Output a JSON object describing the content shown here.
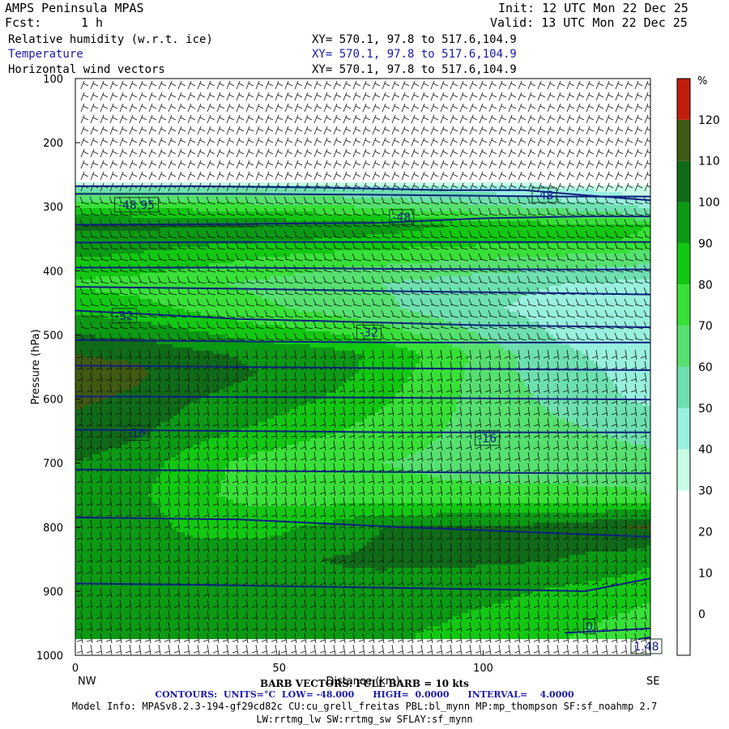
{
  "header": {
    "title": "AMPS Peninsula MPAS",
    "fcst_label": "Fcst:",
    "fcst_value": "1 h",
    "init": "Init: 12 UTC Mon 22 Dec 25",
    "valid": "Valid: 13 UTC Mon 22 Dec 25",
    "fields": [
      {
        "name": "Relative humidity (w.r.t. ice)",
        "xy": "XY= 570.1, 97.8 to 517.6,104.9",
        "color": "#000000"
      },
      {
        "name": "Temperature",
        "xy": "XY= 570.1, 97.8 to 517.6,104.9",
        "color": "#1a1aa8"
      },
      {
        "name": "Horizontal wind vectors",
        "xy": "XY= 570.1, 97.8 to 517.6,104.9",
        "color": "#000000"
      }
    ]
  },
  "footer": {
    "barb": "BARB VECTORS: FULL BARB = 10 kts",
    "contours": "CONTOURS:  UNITS=°C  LOW= -48.000      HIGH=  0.0000      INTERVAL=    4.0000",
    "model_info": "Model Info: MPASv8.2.3-194-gf29cd82c CU:cu_grell_freitas PBL:bl_mynn MP:mp_thompson SF:sf_noahmp 2.7",
    "model_info2": "LW:rrtmg_lw SW:rrtmg_sw SFLAY:sf_mynn"
  },
  "chart_data": {
    "type": "heatmap",
    "xlabel": "Distance (km)",
    "ylabel": "Pressure (hPa)",
    "x_ticks": [
      0,
      50,
      100
    ],
    "y_ticks": [
      100,
      200,
      300,
      400,
      500,
      600,
      700,
      800,
      900,
      1000
    ],
    "xlim": [
      0,
      141
    ],
    "ylim": [
      1000,
      100
    ],
    "x_end_labels": {
      "left": "NW",
      "right": "SE"
    },
    "colorbar": {
      "unit": "%",
      "tick_labels": [
        120,
        110,
        100,
        90,
        80,
        70,
        60,
        50,
        40,
        30,
        20,
        10,
        0
      ],
      "levels": [
        -10,
        0,
        10,
        20,
        30,
        40,
        50,
        60,
        70,
        80,
        90,
        100,
        110,
        120,
        130
      ],
      "colors": [
        "#ffffff",
        "#ffffff",
        "#ffffff",
        "#ffffff",
        "#c8fde6",
        "#98f0de",
        "#6ee0b0",
        "#56e070",
        "#38e038",
        "#12c812",
        "#0b9a14",
        "#0f6b18",
        "#3f5a12",
        "#c01e0a",
        "#ff0000"
      ]
    },
    "rh_field": {
      "x": [
        0,
        15,
        30,
        45,
        60,
        75,
        90,
        105,
        120,
        135,
        141
      ],
      "p": [
        100,
        150,
        200,
        250,
        270,
        290,
        310,
        330,
        350,
        380,
        420,
        460,
        500,
        530,
        560,
        600,
        650,
        700,
        750,
        800,
        850,
        900,
        950,
        975
      ],
      "rh": [
        [
          0,
          0,
          0,
          0,
          0,
          0,
          0,
          0,
          0,
          0,
          0
        ],
        [
          0,
          0,
          0,
          0,
          0,
          0,
          0,
          0,
          0,
          0,
          0
        ],
        [
          0,
          0,
          0,
          0,
          0,
          0,
          0,
          0,
          0,
          0,
          0
        ],
        [
          0,
          0,
          0,
          0,
          0,
          0,
          0,
          0,
          0,
          0,
          0
        ],
        [
          55,
          55,
          55,
          55,
          52,
          50,
          48,
          45,
          40,
          35,
          32
        ],
        [
          70,
          70,
          68,
          66,
          64,
          62,
          58,
          55,
          50,
          45,
          40
        ],
        [
          88,
          86,
          84,
          82,
          80,
          76,
          72,
          68,
          64,
          60,
          56
        ],
        [
          102,
          102,
          101,
          100,
          98,
          94,
          90,
          86,
          84,
          82,
          80
        ],
        [
          98,
          96,
          94,
          92,
          90,
          88,
          86,
          84,
          82,
          80,
          78
        ],
        [
          90,
          88,
          84,
          80,
          76,
          74,
          72,
          70,
          68,
          66,
          64
        ],
        [
          78,
          76,
          72,
          68,
          64,
          60,
          56,
          52,
          50,
          48,
          46
        ],
        [
          88,
          84,
          78,
          72,
          68,
          62,
          56,
          50,
          46,
          42,
          40
        ],
        [
          100,
          98,
          92,
          86,
          82,
          76,
          66,
          56,
          48,
          44,
          42
        ],
        [
          110,
          108,
          102,
          98,
          95,
          88,
          76,
          62,
          52,
          46,
          44
        ],
        [
          114,
          112,
          104,
          100,
          96,
          86,
          74,
          62,
          54,
          48,
          46
        ],
        [
          112,
          108,
          100,
          96,
          90,
          82,
          72,
          64,
          56,
          50,
          48
        ],
        [
          106,
          102,
          94,
          88,
          82,
          76,
          70,
          66,
          62,
          58,
          56
        ],
        [
          100,
          95,
          84,
          76,
          72,
          70,
          68,
          66,
          66,
          64,
          64
        ],
        [
          98,
          92,
          82,
          76,
          74,
          74,
          72,
          72,
          72,
          72,
          70
        ],
        [
          100,
          96,
          86,
          86,
          92,
          100,
          102,
          102,
          104,
          110,
          112
        ],
        [
          100,
          100,
          96,
          96,
          100,
          102,
          102,
          102,
          100,
          96,
          92
        ],
        [
          98,
          98,
          98,
          98,
          98,
          96,
          94,
          92,
          88,
          84,
          82
        ],
        [
          96,
          96,
          96,
          96,
          94,
          92,
          90,
          86,
          82,
          78,
          76
        ],
        [
          95,
          95,
          95,
          95,
          94,
          92,
          88,
          84,
          80,
          76,
          74
        ]
      ]
    },
    "temperature_contours": [
      {
        "label": "-48.95",
        "points": [
          [
            0,
            268
          ],
          [
            30,
            268
          ],
          [
            60,
            270
          ],
          [
            90,
            274
          ],
          [
            110,
            274
          ],
          [
            125,
            282
          ],
          [
            141,
            290
          ]
        ]
      },
      {
        "label": "-48",
        "points": [
          [
            0,
            280
          ],
          [
            40,
            280
          ],
          [
            70,
            281
          ],
          [
            100,
            283
          ],
          [
            118,
            284
          ],
          [
            141,
            284
          ]
        ]
      },
      {
        "label": "-48",
        "points": [
          [
            0,
            328
          ],
          [
            40,
            327
          ],
          [
            75,
            325
          ],
          [
            100,
            318
          ],
          [
            125,
            315
          ],
          [
            141,
            315
          ]
        ]
      },
      {
        "label": "",
        "points": [
          [
            0,
            356
          ],
          [
            40,
            355
          ],
          [
            80,
            355
          ],
          [
            120,
            355
          ],
          [
            141,
            355
          ]
        ]
      },
      {
        "label": "",
        "points": [
          [
            0,
            395
          ],
          [
            40,
            395
          ],
          [
            80,
            397
          ],
          [
            120,
            398
          ],
          [
            141,
            398
          ]
        ]
      },
      {
        "label": "",
        "points": [
          [
            0,
            425
          ],
          [
            40,
            428
          ],
          [
            80,
            432
          ],
          [
            120,
            435
          ],
          [
            141,
            437
          ]
        ]
      },
      {
        "label": "-32",
        "points": [
          [
            0,
            462
          ],
          [
            40,
            475
          ],
          [
            70,
            480
          ],
          [
            100,
            485
          ],
          [
            141,
            488
          ]
        ]
      },
      {
        "label": "",
        "points": [
          [
            0,
            508
          ],
          [
            40,
            510
          ],
          [
            80,
            512
          ],
          [
            120,
            512
          ],
          [
            141,
            512
          ]
        ]
      },
      {
        "label": "",
        "points": [
          [
            0,
            548
          ],
          [
            40,
            550
          ],
          [
            80,
            552
          ],
          [
            120,
            554
          ],
          [
            141,
            555
          ]
        ]
      },
      {
        "label": "",
        "points": [
          [
            0,
            596
          ],
          [
            40,
            597
          ],
          [
            80,
            598
          ],
          [
            120,
            600
          ],
          [
            141,
            601
          ]
        ]
      },
      {
        "label": "-16",
        "points": [
          [
            0,
            648
          ],
          [
            40,
            650
          ],
          [
            80,
            652
          ],
          [
            120,
            652
          ],
          [
            141,
            652
          ]
        ]
      },
      {
        "label": "",
        "points": [
          [
            0,
            710
          ],
          [
            40,
            712
          ],
          [
            80,
            714
          ],
          [
            120,
            716
          ],
          [
            141,
            716
          ]
        ]
      },
      {
        "label": "",
        "points": [
          [
            0,
            785
          ],
          [
            40,
            788
          ],
          [
            80,
            800
          ],
          [
            120,
            810
          ],
          [
            141,
            815
          ]
        ]
      },
      {
        "label": "",
        "points": [
          [
            0,
            888
          ],
          [
            30,
            890
          ],
          [
            60,
            893
          ],
          [
            100,
            897
          ],
          [
            125,
            900
          ],
          [
            141,
            880
          ]
        ]
      },
      {
        "label": "0",
        "points": [
          [
            120,
            965
          ],
          [
            130,
            962
          ],
          [
            141,
            958
          ]
        ]
      },
      {
        "label": "1.48",
        "points": [
          [
            138,
            975
          ],
          [
            141,
            972
          ]
        ]
      }
    ],
    "contour_labels": [
      {
        "text": "-48.95",
        "x": 15,
        "p": 297
      },
      {
        "text": "-48",
        "x": 115,
        "p": 282
      },
      {
        "text": "-48",
        "x": 80,
        "p": 316
      },
      {
        "text": "-32",
        "x": 12,
        "p": 470
      },
      {
        "text": "-32",
        "x": 72,
        "p": 496
      },
      {
        "text": "-16",
        "x": 15,
        "p": 653
      },
      {
        "text": "-16",
        "x": 101,
        "p": 661
      },
      {
        "text": "0",
        "x": 126,
        "p": 955
      },
      {
        "text": "1.48",
        "x": 140,
        "p": 986
      }
    ]
  }
}
